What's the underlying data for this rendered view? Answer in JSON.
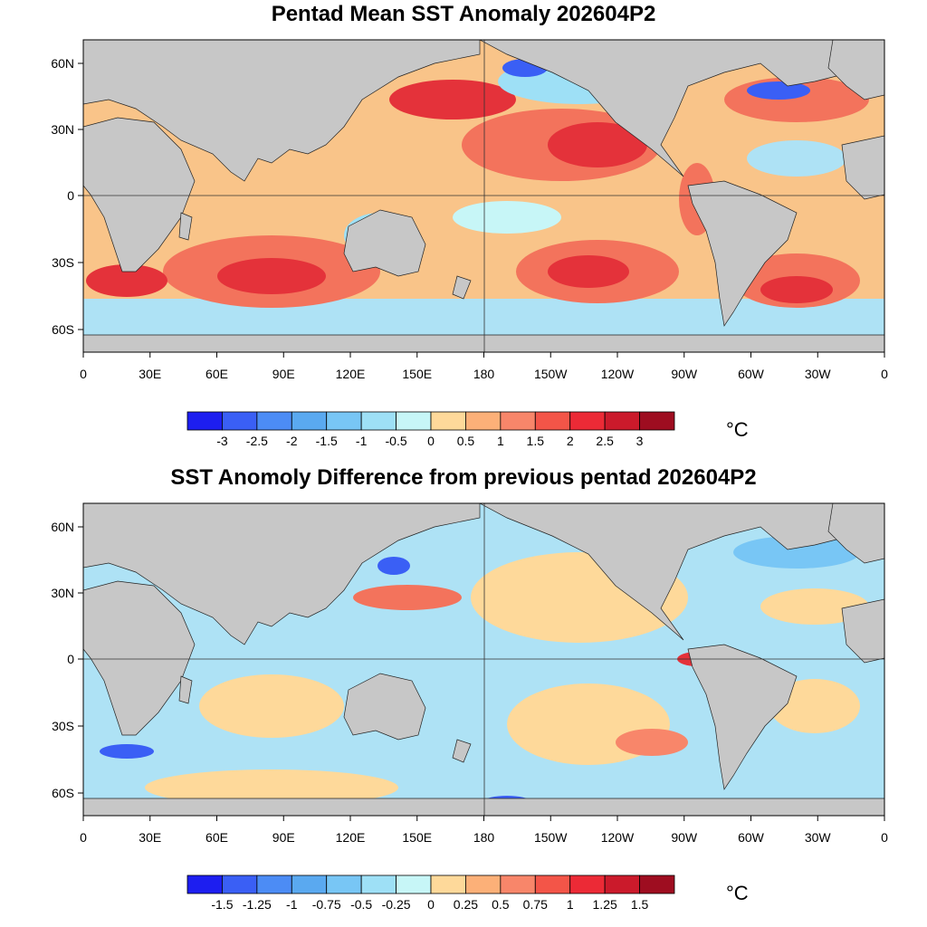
{
  "maps": [
    {
      "title": "Pentad Mean SST Anomaly 202604P2",
      "lat_ticks": [
        "60N",
        "30N",
        "0",
        "30S",
        "60S"
      ],
      "lon_ticks": [
        "0",
        "30E",
        "60E",
        "90E",
        "120E",
        "150E",
        "180",
        "150W",
        "120W",
        "90W",
        "60W",
        "30W",
        "0"
      ],
      "colorbar": {
        "labels": [
          "-3",
          "-2.5",
          "-2",
          "-1.5",
          "-1",
          "-0.5",
          "0",
          "0.5",
          "1",
          "1.5",
          "2",
          "2.5",
          "3"
        ],
        "colors": [
          "#1d1ef0",
          "#3a5ff5",
          "#4c8cf5",
          "#5aa9f0",
          "#78c6f5",
          "#9ee0f6",
          "#c7f6f7",
          "#fed99a",
          "#fcb078",
          "#f8866a",
          "#f35548",
          "#ec2a36",
          "#cb1a2b",
          "#9e0d20"
        ],
        "unit": "°C"
      }
    },
    {
      "title": "SST Anomoly Difference from previous pentad 202604P2",
      "lat_ticks": [
        "60N",
        "30N",
        "0",
        "30S",
        "60S"
      ],
      "lon_ticks": [
        "0",
        "30E",
        "60E",
        "90E",
        "120E",
        "150E",
        "180",
        "150W",
        "120W",
        "90W",
        "60W",
        "30W",
        "0"
      ],
      "colorbar": {
        "labels": [
          "-1.5",
          "-1.25",
          "-1",
          "-0.75",
          "-0.5",
          "-0.25",
          "0",
          "0.25",
          "0.5",
          "0.75",
          "1",
          "1.25",
          "1.5"
        ],
        "colors": [
          "#1d1ef0",
          "#3a5ff5",
          "#4c8cf5",
          "#5aa9f0",
          "#78c6f5",
          "#9ee0f6",
          "#c7f6f7",
          "#fed99a",
          "#fcb078",
          "#f8866a",
          "#f35548",
          "#ec2a36",
          "#cb1a2b",
          "#9e0d20"
        ],
        "unit": "°C"
      }
    }
  ],
  "colors": {
    "land": "#c7c7c7",
    "ocean_base_top": "#f9c489",
    "ocean_base_bottom": "#aee2f5"
  }
}
